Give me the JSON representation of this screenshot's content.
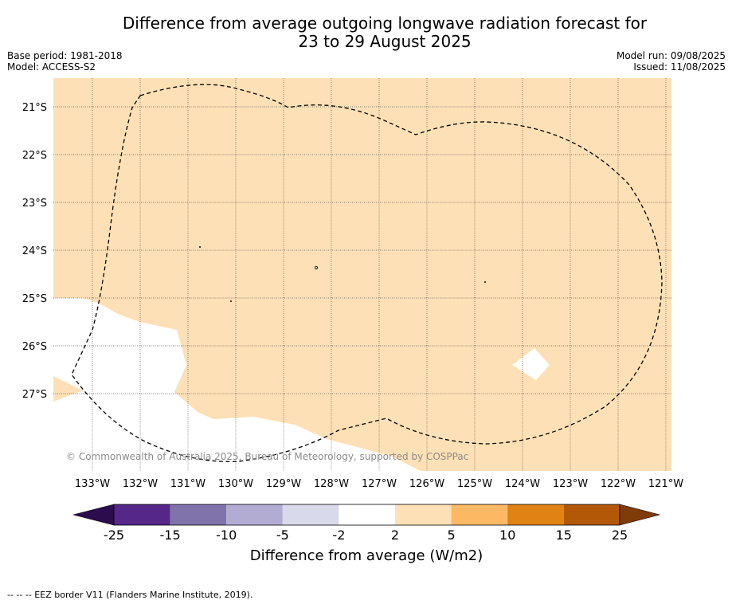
{
  "title_line1": "Difference from average outgoing longwave radiation forecast for",
  "title_line2": "23 to 29 August 2025",
  "base_period": "Base period: 1981-2018",
  "model": "Model: ACCESS-S2",
  "model_run": "Model run: 09/08/2025",
  "issued": "Issued: 11/08/2025",
  "copyright": "© Commonwealth of Australia 2025, Bureau of Meteorology, supported by COSPPac",
  "lat_labels": [
    "21°S",
    "22°S",
    "23°S",
    "24°S",
    "25°S",
    "26°S",
    "27°S"
  ],
  "lon_labels": [
    "133°W",
    "132°W",
    "131°W",
    "130°W",
    "129°W",
    "128°W",
    "127°W",
    "126°W",
    "125°W",
    "124°W",
    "123°W",
    "122°W",
    "121°W"
  ],
  "colorbar": {
    "title": "Difference from average (W/m2)",
    "ticks": [
      "-25",
      "-15",
      "-10",
      "-5",
      "-2",
      "2",
      "5",
      "10",
      "15",
      "25"
    ],
    "colors": [
      "#2d0c4e",
      "#542788",
      "#8073ac",
      "#b2abd2",
      "#d8daeb",
      "#ffffff",
      "#fee0b6",
      "#fdb863",
      "#e08214",
      "#b35806",
      "#7f3b08"
    ]
  },
  "footer": "--  --  -- EEZ border V11 (Flanders Marine Institute, 2019)."
}
